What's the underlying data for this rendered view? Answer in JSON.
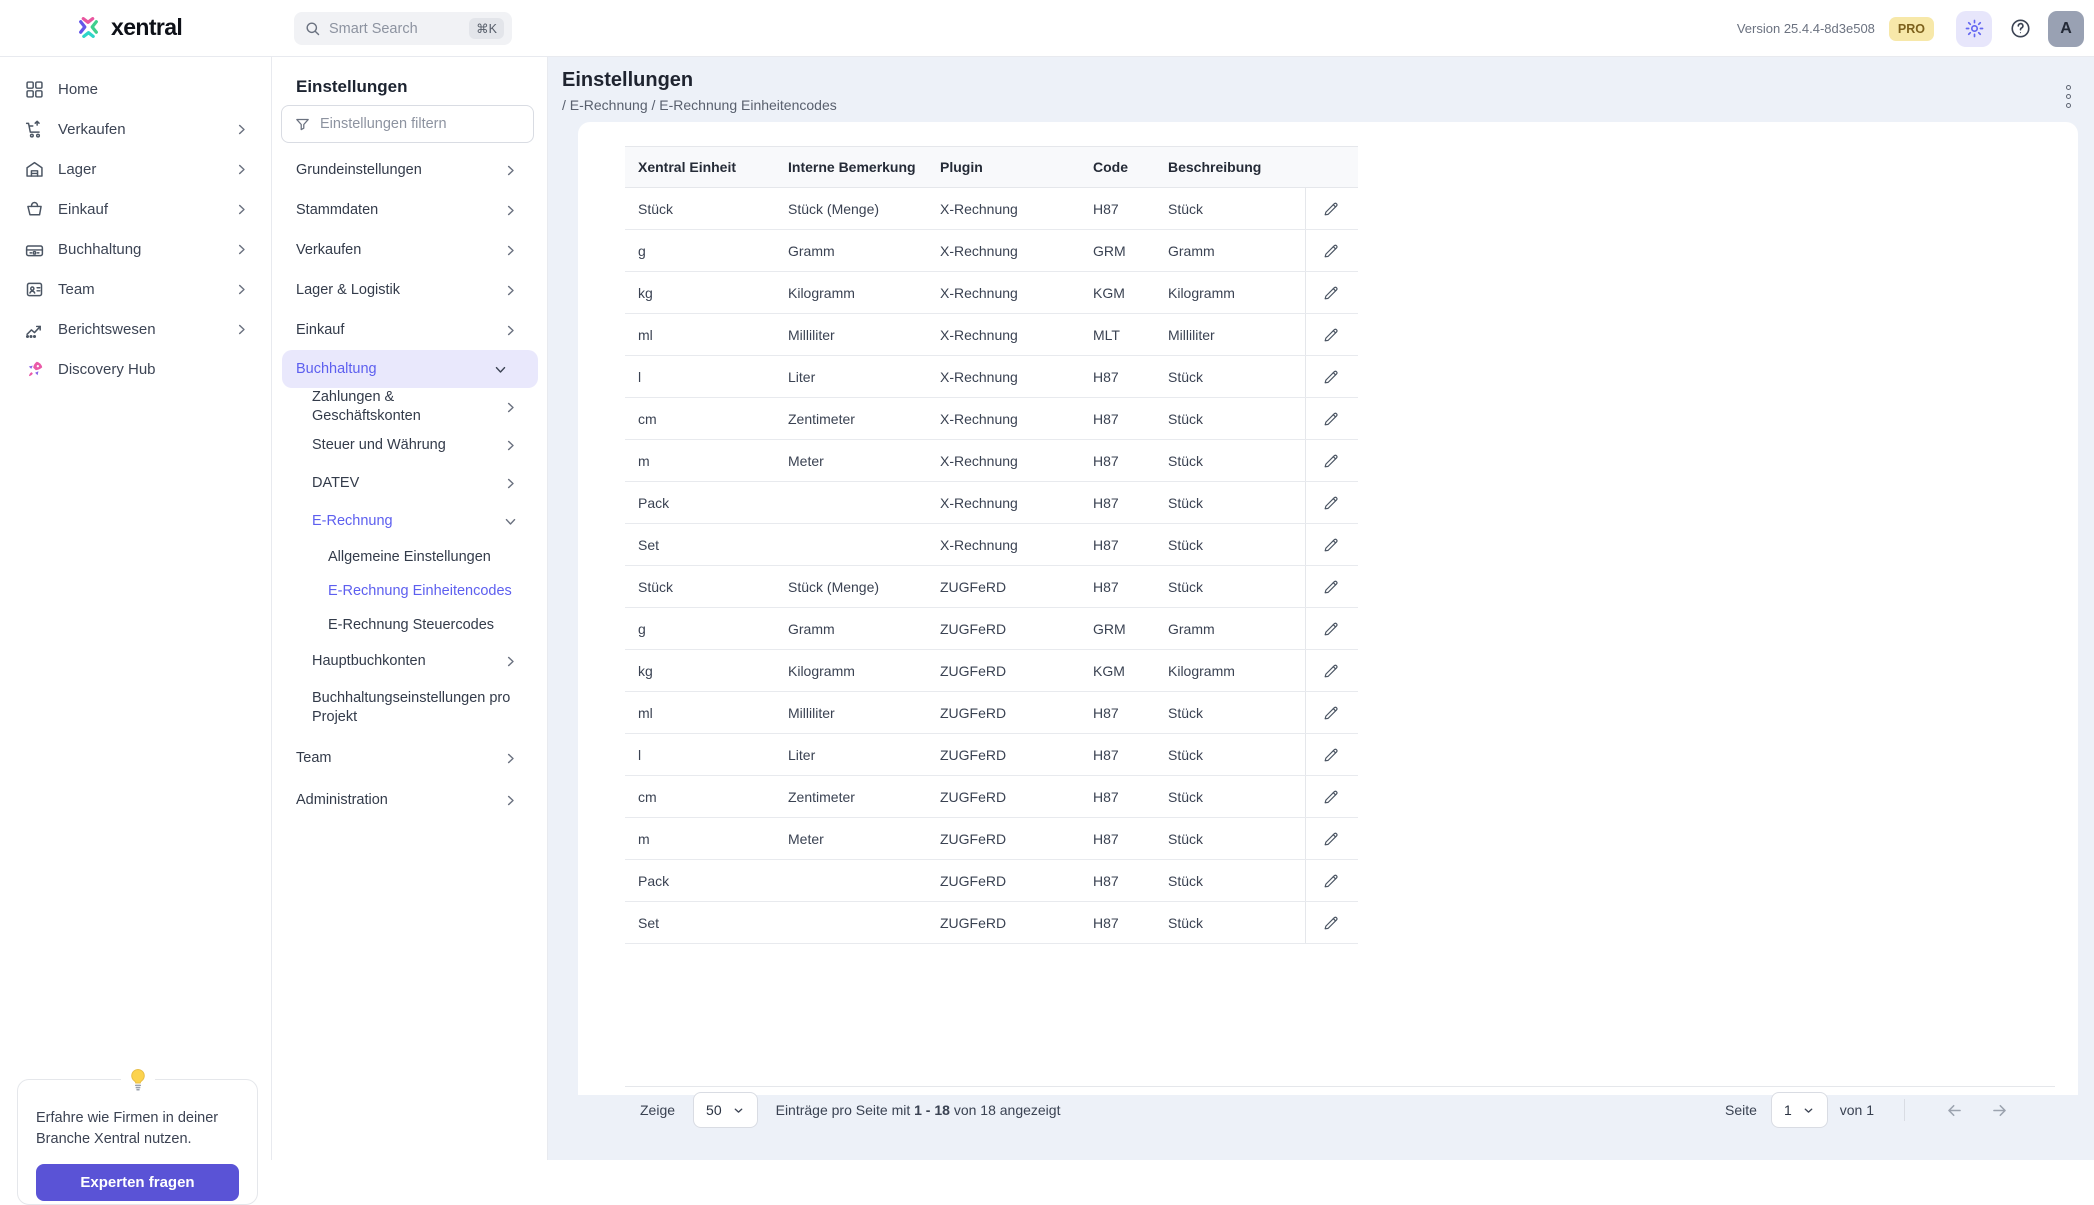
{
  "colors": {
    "accent": "#5D5FEF",
    "accent_light_bg": "#E9E8FC",
    "main_bg": "#EDF1F8",
    "border": "#E5E7EB",
    "pro_badge_bg": "#F7E8A9",
    "pro_badge_text": "#7D611C",
    "avatar_bg": "#99A1B3",
    "promo_button_bg": "#5A53D6"
  },
  "topbar": {
    "logo_text": "xentral",
    "search_placeholder": "Smart Search",
    "search_shortcut": "⌘K",
    "version": "Version 25.4.4-8d3e508",
    "plan_badge": "PRO",
    "avatar_letter": "A"
  },
  "sidebar": {
    "items": [
      {
        "label": "Home",
        "icon": "grid-icon",
        "chevron": false
      },
      {
        "label": "Verkaufen",
        "icon": "cart-up-icon",
        "chevron": true
      },
      {
        "label": "Lager",
        "icon": "warehouse-icon",
        "chevron": true
      },
      {
        "label": "Einkauf",
        "icon": "procurement-icon",
        "chevron": true
      },
      {
        "label": "Buchhaltung",
        "icon": "register-icon",
        "chevron": true
      },
      {
        "label": "Team",
        "icon": "badge-icon",
        "chevron": true
      },
      {
        "label": "Berichtswesen",
        "icon": "chart-icon",
        "chevron": true
      },
      {
        "label": "Discovery Hub",
        "icon": "rocket-icon",
        "chevron": false
      }
    ]
  },
  "promo": {
    "text": "Erfahre wie Firmen in deiner Branche Xentral nutzen.",
    "button_label": "Experten fragen"
  },
  "settings_nav": {
    "title": "Einstellungen",
    "filter_placeholder": "Einstellungen filtern",
    "items": [
      {
        "label": "Grundeinstellungen",
        "level": 1,
        "chevron": "right"
      },
      {
        "label": "Stammdaten",
        "level": 1,
        "chevron": "right"
      },
      {
        "label": "Verkaufen",
        "level": 1,
        "chevron": "right"
      },
      {
        "label": "Lager & Logistik",
        "level": 1,
        "chevron": "right"
      },
      {
        "label": "Einkauf",
        "level": 1,
        "chevron": "right"
      },
      {
        "label": "Buchhaltung",
        "level": 1,
        "chevron": "down",
        "active": true,
        "pill": true
      },
      {
        "label": "Zahlungen & Geschäftskonten",
        "level": 2,
        "chevron": "right"
      },
      {
        "label": "Steuer und Währung",
        "level": 2,
        "chevron": "right"
      },
      {
        "label": "DATEV",
        "level": 2,
        "chevron": "right"
      },
      {
        "label": "E-Rechnung",
        "level": 2,
        "chevron": "down",
        "active": true
      },
      {
        "label": "Allgemeine Einstellungen",
        "level": 3
      },
      {
        "label": "E-Rechnung Einheitencodes",
        "level": 3,
        "active": true
      },
      {
        "label": "E-Rechnung Steuercodes",
        "level": 3
      },
      {
        "label": "Hauptbuchkonten",
        "level": 2,
        "chevron": "right"
      },
      {
        "label": "Buchhaltungseinstellungen pro Projekt",
        "level": 2,
        "tall": true
      },
      {
        "label": "Team",
        "level": 1,
        "team_gap": true,
        "chevron": "right"
      },
      {
        "label": "Administration",
        "level": 1,
        "chevron": "right"
      }
    ]
  },
  "main": {
    "title": "Einstellungen",
    "breadcrumb": "/ E-Rechnung / E-Rechnung Einheitencodes",
    "table": {
      "columns": [
        "Xentral Einheit",
        "Interne Bemerkung",
        "Plugin",
        "Code",
        "Beschreibung"
      ],
      "rows": [
        [
          "Stück",
          "Stück (Menge)",
          "X-Rechnung",
          "H87",
          "Stück"
        ],
        [
          "g",
          "Gramm",
          "X-Rechnung",
          "GRM",
          "Gramm"
        ],
        [
          "kg",
          "Kilogramm",
          "X-Rechnung",
          "KGM",
          "Kilogramm"
        ],
        [
          "ml",
          "Milliliter",
          "X-Rechnung",
          "MLT",
          "Milliliter"
        ],
        [
          "l",
          "Liter",
          "X-Rechnung",
          "H87",
          "Stück"
        ],
        [
          "cm",
          "Zentimeter",
          "X-Rechnung",
          "H87",
          "Stück"
        ],
        [
          "m",
          "Meter",
          "X-Rechnung",
          "H87",
          "Stück"
        ],
        [
          "Pack",
          "",
          "X-Rechnung",
          "H87",
          "Stück"
        ],
        [
          "Set",
          "",
          "X-Rechnung",
          "H87",
          "Stück"
        ],
        [
          "Stück",
          "Stück (Menge)",
          "ZUGFeRD",
          "H87",
          "Stück"
        ],
        [
          "g",
          "Gramm",
          "ZUGFeRD",
          "GRM",
          "Gramm"
        ],
        [
          "kg",
          "Kilogramm",
          "ZUGFeRD",
          "KGM",
          "Kilogramm"
        ],
        [
          "ml",
          "Milliliter",
          "ZUGFeRD",
          "H87",
          "Stück"
        ],
        [
          "l",
          "Liter",
          "ZUGFeRD",
          "H87",
          "Stück"
        ],
        [
          "cm",
          "Zentimeter",
          "ZUGFeRD",
          "H87",
          "Stück"
        ],
        [
          "m",
          "Meter",
          "ZUGFeRD",
          "H87",
          "Stück"
        ],
        [
          "Pack",
          "",
          "ZUGFeRD",
          "H87",
          "Stück"
        ],
        [
          "Set",
          "",
          "ZUGFeRD",
          "H87",
          "Stück"
        ]
      ]
    },
    "pagination": {
      "show_label": "Zeige",
      "page_size": "50",
      "info_prefix": "Einträge pro Seite mit",
      "info_range": "1 - 18",
      "info_suffix": "von 18 angezeigt",
      "page_label": "Seite",
      "current_page": "1",
      "total_pages_label": "von 1"
    }
  }
}
